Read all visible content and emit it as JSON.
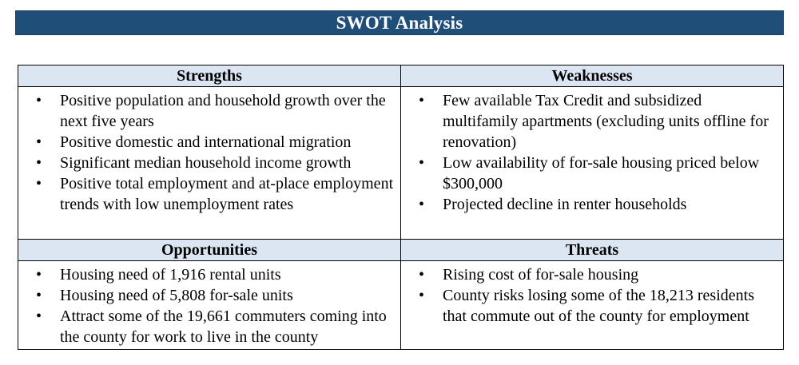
{
  "title": "SWOT Analysis",
  "colors": {
    "title_bar": "#1f4e79",
    "header_cell": "#dbe6f2"
  },
  "quadrants": {
    "strengths": {
      "heading": "Strengths",
      "items": [
        "Positive population and household growth over the next five years",
        "Positive domestic and international migration",
        "Significant median household income growth",
        "Positive total employment and at-place employment trends with low unemployment rates"
      ]
    },
    "weaknesses": {
      "heading": "Weaknesses",
      "items": [
        "Few available Tax Credit and subsidized multifamily apartments (excluding units offline for renovation)",
        "Low availability of for-sale housing priced below $300,000",
        "Projected decline in renter households"
      ]
    },
    "opportunities": {
      "heading": "Opportunities",
      "items": [
        "Housing need of 1,916 rental units",
        "Housing need of 5,808 for-sale units",
        "Attract some of the 19,661 commuters coming into the county for work to live in the county"
      ]
    },
    "threats": {
      "heading": "Threats",
      "items": [
        "Rising cost of for-sale housing",
        "County risks losing some of the 18,213 residents that commute out of the county for employment"
      ]
    }
  }
}
